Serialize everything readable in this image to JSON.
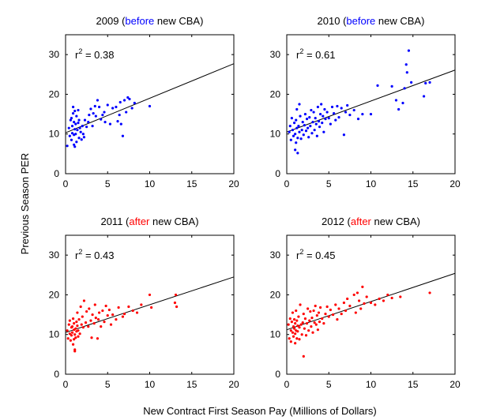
{
  "ylabel": "Previous Season PER",
  "xlabel": "New Contract First Season Pay (Millions of Dollars)",
  "colors": {
    "before": "#0000ff",
    "after": "#ff0000",
    "text": "#000000"
  },
  "chart_data": [
    {
      "type": "scatter",
      "title": {
        "year": "2009 (",
        "tag": "before",
        "rest": " new CBA)"
      },
      "tag_color": "before",
      "r2_label": "r",
      "r2_exp": "2",
      "r2_value": " = 0.38",
      "xlim": [
        0,
        20
      ],
      "ylim": [
        0,
        35
      ],
      "xticks": [
        0,
        5,
        10,
        15,
        20
      ],
      "yticks": [
        0,
        10,
        20,
        30
      ],
      "xticklabels": [
        "0",
        "5",
        "10",
        "15",
        "20"
      ],
      "yticklabels": [
        "0",
        "10",
        "20",
        "30"
      ],
      "fit": {
        "intercept": 10.3,
        "slope": 0.87
      },
      "points": [
        [
          0.2,
          7.0
        ],
        [
          0.4,
          11.5
        ],
        [
          0.5,
          9.5
        ],
        [
          0.6,
          13.5
        ],
        [
          0.7,
          14.0
        ],
        [
          0.7,
          8.5
        ],
        [
          0.8,
          12.0
        ],
        [
          0.8,
          10.2
        ],
        [
          0.9,
          16.8
        ],
        [
          0.9,
          15.2
        ],
        [
          1.0,
          9.8
        ],
        [
          1.0,
          7.3
        ],
        [
          1.0,
          13.0
        ],
        [
          1.1,
          11.2
        ],
        [
          1.1,
          6.8
        ],
        [
          1.1,
          15.8
        ],
        [
          1.2,
          12.5
        ],
        [
          1.2,
          10.0
        ],
        [
          1.3,
          8.0
        ],
        [
          1.3,
          14.5
        ],
        [
          1.4,
          11.0
        ],
        [
          1.5,
          16.0
        ],
        [
          1.5,
          12.8
        ],
        [
          1.6,
          9.0
        ],
        [
          1.6,
          13.5
        ],
        [
          1.7,
          11.5
        ],
        [
          1.8,
          10.5
        ],
        [
          1.9,
          8.6
        ],
        [
          2.0,
          12.0
        ],
        [
          2.1,
          10.0
        ],
        [
          2.2,
          9.2
        ],
        [
          2.3,
          13.5
        ],
        [
          2.5,
          11.8
        ],
        [
          2.7,
          13.0
        ],
        [
          2.8,
          14.8
        ],
        [
          3.0,
          16.3
        ],
        [
          3.2,
          12.0
        ],
        [
          3.3,
          15.2
        ],
        [
          3.5,
          17.0
        ],
        [
          3.6,
          14.5
        ],
        [
          3.8,
          18.5
        ],
        [
          4.0,
          16.8
        ],
        [
          4.2,
          13.7
        ],
        [
          4.4,
          14.8
        ],
        [
          4.6,
          15.5
        ],
        [
          4.7,
          13.0
        ],
        [
          5.0,
          17.3
        ],
        [
          5.3,
          12.5
        ],
        [
          5.6,
          16.5
        ],
        [
          6.0,
          16.8
        ],
        [
          6.2,
          13.2
        ],
        [
          6.4,
          14.8
        ],
        [
          6.5,
          18.0
        ],
        [
          6.6,
          12.5
        ],
        [
          6.8,
          9.5
        ],
        [
          7.0,
          18.5
        ],
        [
          7.2,
          15.5
        ],
        [
          7.4,
          19.2
        ],
        [
          7.6,
          18.8
        ],
        [
          7.9,
          16.5
        ],
        [
          8.2,
          17.8
        ],
        [
          10.0,
          17.0
        ]
      ]
    },
    {
      "type": "scatter",
      "title": {
        "year": "2010 (",
        "tag": "before",
        "rest": " new CBA)"
      },
      "tag_color": "before",
      "r2_label": "r",
      "r2_exp": "2",
      "r2_value": " = 0.61",
      "xlim": [
        0,
        20
      ],
      "ylim": [
        0,
        35
      ],
      "xticks": [
        0,
        5,
        10,
        15,
        20
      ],
      "yticks": [
        0,
        10,
        20,
        30
      ],
      "xticklabels": [
        "0",
        "5",
        "10",
        "15",
        "20"
      ],
      "yticklabels": [
        "0",
        "10",
        "20",
        "30"
      ],
      "fit": {
        "intercept": 10.5,
        "slope": 0.78
      },
      "points": [
        [
          0.3,
          10.5
        ],
        [
          0.4,
          12.0
        ],
        [
          0.5,
          8.5
        ],
        [
          0.6,
          14.0
        ],
        [
          0.7,
          11.0
        ],
        [
          0.8,
          9.5
        ],
        [
          0.9,
          12.8
        ],
        [
          1.0,
          6.0
        ],
        [
          1.0,
          10.0
        ],
        [
          1.1,
          13.5
        ],
        [
          1.1,
          7.8
        ],
        [
          1.2,
          11.5
        ],
        [
          1.2,
          16.2
        ],
        [
          1.3,
          5.2
        ],
        [
          1.3,
          9.0
        ],
        [
          1.4,
          12.0
        ],
        [
          1.5,
          10.5
        ],
        [
          1.5,
          17.5
        ],
        [
          1.6,
          14.5
        ],
        [
          1.7,
          8.8
        ],
        [
          1.8,
          11.0
        ],
        [
          1.9,
          13.0
        ],
        [
          2.0,
          9.8
        ],
        [
          2.1,
          12.2
        ],
        [
          2.2,
          15.0
        ],
        [
          2.3,
          10.8
        ],
        [
          2.4,
          13.8
        ],
        [
          2.5,
          11.5
        ],
        [
          2.6,
          9.2
        ],
        [
          2.7,
          14.2
        ],
        [
          2.8,
          12.0
        ],
        [
          2.9,
          16.0
        ],
        [
          3.0,
          10.2
        ],
        [
          3.1,
          13.0
        ],
        [
          3.2,
          15.5
        ],
        [
          3.3,
          11.0
        ],
        [
          3.4,
          14.0
        ],
        [
          3.5,
          12.5
        ],
        [
          3.6,
          9.5
        ],
        [
          3.7,
          16.8
        ],
        [
          3.8,
          13.2
        ],
        [
          3.9,
          11.8
        ],
        [
          4.0,
          15.0
        ],
        [
          4.1,
          17.5
        ],
        [
          4.2,
          12.8
        ],
        [
          4.3,
          14.5
        ],
        [
          4.4,
          10.5
        ],
        [
          4.5,
          16.2
        ],
        [
          4.6,
          13.8
        ],
        [
          4.8,
          15.5
        ],
        [
          5.0,
          14.0
        ],
        [
          5.2,
          12.5
        ],
        [
          5.4,
          16.8
        ],
        [
          5.6,
          15.2
        ],
        [
          5.8,
          13.5
        ],
        [
          6.0,
          17.0
        ],
        [
          6.2,
          14.2
        ],
        [
          6.5,
          16.5
        ],
        [
          6.8,
          9.8
        ],
        [
          7.0,
          15.5
        ],
        [
          7.2,
          17.2
        ],
        [
          7.5,
          14.8
        ],
        [
          8.0,
          16.0
        ],
        [
          8.5,
          13.8
        ],
        [
          9.0,
          15.0
        ],
        [
          10.0,
          15.0
        ],
        [
          10.8,
          22.2
        ],
        [
          12.5,
          22.0
        ],
        [
          13.0,
          18.5
        ],
        [
          13.3,
          16.2
        ],
        [
          13.8,
          17.8
        ],
        [
          14.0,
          21.5
        ],
        [
          14.2,
          27.5
        ],
        [
          14.3,
          25.5
        ],
        [
          14.5,
          31.0
        ],
        [
          14.8,
          23.0
        ],
        [
          16.3,
          19.5
        ],
        [
          16.5,
          22.8
        ],
        [
          17.0,
          23.0
        ]
      ]
    },
    {
      "type": "scatter",
      "title": {
        "year": "2011 (",
        "tag": "after",
        "rest": " new CBA)"
      },
      "tag_color": "after",
      "r2_label": "r",
      "r2_exp": "2",
      "r2_value": " = 0.43",
      "xlim": [
        0,
        20
      ],
      "ylim": [
        0,
        35
      ],
      "xticks": [
        0,
        5,
        10,
        15,
        20
      ],
      "yticks": [
        0,
        10,
        20,
        30
      ],
      "xticklabels": [
        "0",
        "5",
        "10",
        "15",
        "20"
      ],
      "yticklabels": [
        "0",
        "10",
        "20",
        "30"
      ],
      "fit": {
        "intercept": 10.5,
        "slope": 0.7
      },
      "points": [
        [
          0.2,
          11.0
        ],
        [
          0.3,
          9.0
        ],
        [
          0.4,
          12.5
        ],
        [
          0.5,
          10.2
        ],
        [
          0.5,
          13.5
        ],
        [
          0.6,
          8.5
        ],
        [
          0.7,
          11.8
        ],
        [
          0.7,
          9.8
        ],
        [
          0.8,
          12.0
        ],
        [
          0.8,
          10.5
        ],
        [
          0.9,
          7.5
        ],
        [
          0.9,
          14.0
        ],
        [
          1.0,
          11.2
        ],
        [
          1.0,
          8.8
        ],
        [
          1.0,
          12.8
        ],
        [
          1.1,
          10.0
        ],
        [
          1.1,
          5.8
        ],
        [
          1.1,
          6.2
        ],
        [
          1.2,
          11.5
        ],
        [
          1.2,
          9.2
        ],
        [
          1.3,
          13.2
        ],
        [
          1.3,
          10.8
        ],
        [
          1.4,
          12.2
        ],
        [
          1.4,
          15.5
        ],
        [
          1.5,
          9.5
        ],
        [
          1.5,
          11.0
        ],
        [
          1.6,
          13.8
        ],
        [
          1.7,
          10.2
        ],
        [
          1.8,
          17.0
        ],
        [
          1.9,
          12.5
        ],
        [
          2.0,
          14.5
        ],
        [
          2.1,
          11.8
        ],
        [
          2.2,
          18.5
        ],
        [
          2.4,
          13.0
        ],
        [
          2.5,
          15.8
        ],
        [
          2.7,
          12.0
        ],
        [
          2.8,
          16.5
        ],
        [
          3.0,
          13.5
        ],
        [
          3.1,
          9.2
        ],
        [
          3.2,
          15.0
        ],
        [
          3.4,
          12.8
        ],
        [
          3.5,
          17.5
        ],
        [
          3.6,
          14.2
        ],
        [
          3.8,
          9.0
        ],
        [
          3.9,
          13.8
        ],
        [
          4.0,
          15.5
        ],
        [
          4.2,
          12.0
        ],
        [
          4.4,
          16.0
        ],
        [
          4.6,
          13.2
        ],
        [
          4.8,
          17.2
        ],
        [
          5.0,
          14.8
        ],
        [
          5.2,
          16.2
        ],
        [
          5.4,
          12.5
        ],
        [
          5.6,
          15.0
        ],
        [
          6.0,
          13.8
        ],
        [
          6.3,
          16.8
        ],
        [
          6.8,
          14.5
        ],
        [
          7.0,
          15.2
        ],
        [
          7.5,
          17.0
        ],
        [
          8.0,
          16.0
        ],
        [
          8.5,
          15.5
        ],
        [
          9.0,
          17.5
        ],
        [
          10.0,
          20.0
        ],
        [
          10.2,
          16.8
        ],
        [
          13.0,
          18.0
        ],
        [
          13.1,
          20.0
        ],
        [
          13.2,
          17.0
        ]
      ]
    },
    {
      "type": "scatter",
      "title": {
        "year": "2012 (",
        "tag": "after",
        "rest": " new CBA)"
      },
      "tag_color": "after",
      "r2_label": "r",
      "r2_exp": "2",
      "r2_value": " = 0.45",
      "xlim": [
        0,
        20
      ],
      "ylim": [
        0,
        35
      ],
      "xticks": [
        0,
        5,
        10,
        15,
        20
      ],
      "yticks": [
        0,
        10,
        20,
        30
      ],
      "xticklabels": [
        "0",
        "5",
        "10",
        "15",
        "20"
      ],
      "yticklabels": [
        "0",
        "10",
        "20",
        "30"
      ],
      "fit": {
        "intercept": 11.2,
        "slope": 0.71
      },
      "points": [
        [
          0.2,
          12.5
        ],
        [
          0.3,
          9.0
        ],
        [
          0.4,
          14.0
        ],
        [
          0.5,
          11.0
        ],
        [
          0.5,
          8.2
        ],
        [
          0.6,
          13.2
        ],
        [
          0.7,
          10.5
        ],
        [
          0.7,
          15.5
        ],
        [
          0.8,
          12.0
        ],
        [
          0.8,
          9.5
        ],
        [
          0.9,
          11.5
        ],
        [
          0.9,
          13.8
        ],
        [
          1.0,
          10.2
        ],
        [
          1.0,
          7.8
        ],
        [
          1.0,
          12.8
        ],
        [
          1.1,
          11.0
        ],
        [
          1.1,
          16.0
        ],
        [
          1.2,
          9.0
        ],
        [
          1.2,
          13.5
        ],
        [
          1.3,
          10.8
        ],
        [
          1.3,
          12.2
        ],
        [
          1.4,
          14.5
        ],
        [
          1.5,
          11.8
        ],
        [
          1.5,
          8.8
        ],
        [
          1.6,
          17.5
        ],
        [
          1.7,
          12.5
        ],
        [
          1.8,
          10.0
        ],
        [
          1.9,
          13.0
        ],
        [
          2.0,
          15.2
        ],
        [
          2.0,
          4.5
        ],
        [
          2.1,
          11.5
        ],
        [
          2.2,
          14.0
        ],
        [
          2.3,
          9.8
        ],
        [
          2.4,
          12.8
        ],
        [
          2.5,
          16.5
        ],
        [
          2.6,
          11.0
        ],
        [
          2.7,
          13.5
        ],
        [
          2.8,
          15.8
        ],
        [
          2.9,
          12.0
        ],
        [
          3.0,
          14.2
        ],
        [
          3.1,
          10.5
        ],
        [
          3.2,
          16.0
        ],
        [
          3.3,
          13.0
        ],
        [
          3.4,
          17.2
        ],
        [
          3.5,
          12.5
        ],
        [
          3.6,
          14.8
        ],
        [
          3.7,
          11.2
        ],
        [
          3.8,
          15.5
        ],
        [
          3.9,
          13.2
        ],
        [
          4.0,
          16.8
        ],
        [
          4.2,
          14.0
        ],
        [
          4.4,
          12.8
        ],
        [
          4.6,
          15.2
        ],
        [
          4.8,
          17.0
        ],
        [
          5.0,
          14.5
        ],
        [
          5.2,
          16.2
        ],
        [
          5.5,
          15.0
        ],
        [
          5.8,
          17.5
        ],
        [
          6.0,
          13.8
        ],
        [
          6.2,
          16.5
        ],
        [
          6.5,
          15.2
        ],
        [
          6.8,
          18.0
        ],
        [
          7.0,
          16.0
        ],
        [
          7.2,
          19.0
        ],
        [
          7.5,
          17.2
        ],
        [
          8.0,
          20.0
        ],
        [
          8.2,
          15.5
        ],
        [
          8.4,
          20.5
        ],
        [
          8.6,
          18.5
        ],
        [
          8.8,
          16.5
        ],
        [
          9.0,
          22.0
        ],
        [
          9.2,
          17.8
        ],
        [
          9.5,
          19.5
        ],
        [
          10.0,
          18.0
        ],
        [
          10.5,
          17.5
        ],
        [
          11.0,
          19.0
        ],
        [
          11.5,
          18.5
        ],
        [
          12.0,
          20.0
        ],
        [
          12.5,
          19.2
        ],
        [
          13.5,
          19.5
        ],
        [
          17.0,
          20.5
        ]
      ]
    }
  ]
}
